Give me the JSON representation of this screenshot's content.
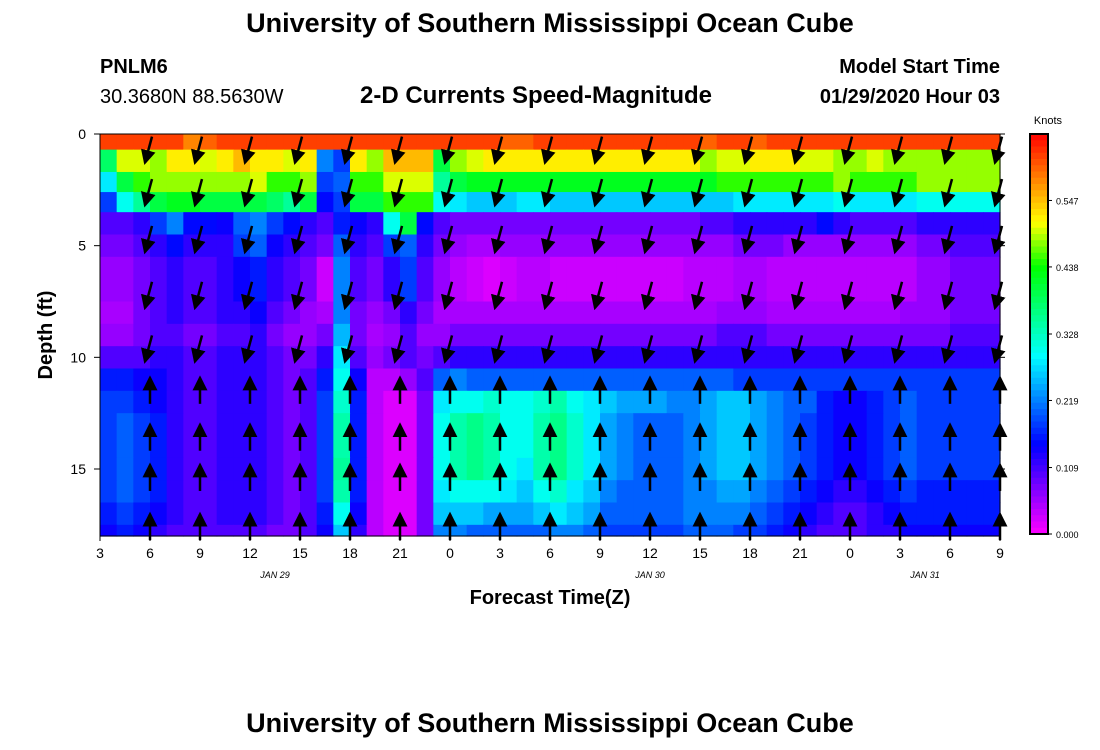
{
  "header": {
    "title": "University of Southern Mississippi Ocean Cube",
    "station_id": "PNLM6",
    "coordinates": "30.3680N 88.5630W",
    "subtitle": "2-D Currents Speed-Magnitude",
    "model_start_label": "Model Start Time",
    "model_start_value": "01/29/2020 Hour 03"
  },
  "footer": {
    "title": "University of Southern Mississippi Ocean Cube"
  },
  "chart_data": {
    "type": "heatmap",
    "title": "2-D Currents Speed-Magnitude",
    "xlabel": "Forecast Time(Z)",
    "ylabel": "Depth (ft)",
    "x_ticks": [
      "3",
      "6",
      "9",
      "12",
      "15",
      "18",
      "21",
      "0",
      "3",
      "6",
      "9",
      "12",
      "15",
      "18",
      "21",
      "0",
      "3",
      "6",
      "9"
    ],
    "x_hours": [
      0,
      54
    ],
    "date_labels": [
      {
        "text": "JAN 29",
        "hour": 10.5
      },
      {
        "text": "JAN 30",
        "hour": 33
      },
      {
        "text": "JAN 31",
        "hour": 49.5
      }
    ],
    "y_ticks": [
      0,
      5,
      10,
      15
    ],
    "ylim": [
      0,
      18
    ],
    "colorbar": {
      "unit": "Knots",
      "ticks": [
        0.0,
        0.109,
        0.219,
        0.328,
        0.438,
        0.547
      ],
      "tick_labels": [
        "0.000",
        "0.109",
        "0.219",
        "0.328",
        "0.438",
        "0.547"
      ],
      "range": [
        0,
        0.656
      ]
    },
    "color_scale": [
      "#ff00ff",
      "#8000ff",
      "#0000ff",
      "#0080ff",
      "#00ffff",
      "#00ff80",
      "#00ff00",
      "#ffff00",
      "#ff8000",
      "#ff0000"
    ],
    "arrow_columns_hours": [
      3,
      6,
      9,
      12,
      15,
      18,
      21,
      24,
      27,
      30,
      33,
      36,
      39,
      42,
      45,
      48,
      51,
      54
    ],
    "arrow_depths_ft": [
      0.7,
      2.6,
      4.7,
      7.2,
      9.6,
      11.5,
      13.6,
      15.4,
      17.6
    ],
    "surface_direction": "south",
    "subsurface_direction": "north",
    "depth_layers_ft": [
      0,
      0.7,
      1.7,
      2.6,
      3.5,
      4.5,
      5.5,
      7.5,
      8.5,
      9.5,
      10.5,
      11.5,
      12.5,
      14.5,
      15.5,
      16.5,
      17.5,
      18
    ],
    "speed_grid": [
      [
        0.62,
        0.62,
        0.62,
        0.62,
        0.62,
        0.58,
        0.6,
        0.62,
        0.62,
        0.62,
        0.62,
        0.62,
        0.62,
        0.62,
        0.62,
        0.62,
        0.62,
        0.62,
        0.62,
        0.62,
        0.62,
        0.62,
        0.62,
        0.62,
        0.6,
        0.6,
        0.62,
        0.62,
        0.62,
        0.62,
        0.62,
        0.62,
        0.62,
        0.62,
        0.62,
        0.62,
        0.6,
        0.62,
        0.62,
        0.6,
        0.62,
        0.62,
        0.62,
        0.62,
        0.62,
        0.62,
        0.62,
        0.62,
        0.62,
        0.62,
        0.62,
        0.62,
        0.62,
        0.62
      ],
      [
        0.38,
        0.5,
        0.5,
        0.48,
        0.52,
        0.52,
        0.5,
        0.52,
        0.55,
        0.52,
        0.52,
        0.5,
        0.52,
        0.22,
        0.18,
        0.52,
        0.48,
        0.55,
        0.55,
        0.55,
        0.4,
        0.48,
        0.5,
        0.52,
        0.52,
        0.52,
        0.52,
        0.52,
        0.52,
        0.52,
        0.52,
        0.52,
        0.52,
        0.52,
        0.52,
        0.52,
        0.48,
        0.5,
        0.5,
        0.52,
        0.52,
        0.52,
        0.5,
        0.5,
        0.48,
        0.48,
        0.5,
        0.48,
        0.48,
        0.48,
        0.48,
        0.48,
        0.48,
        0.48
      ],
      [
        0.28,
        0.4,
        0.45,
        0.48,
        0.48,
        0.48,
        0.48,
        0.48,
        0.48,
        0.5,
        0.45,
        0.45,
        0.48,
        0.18,
        0.2,
        0.45,
        0.45,
        0.5,
        0.5,
        0.5,
        0.35,
        0.4,
        0.42,
        0.42,
        0.42,
        0.42,
        0.42,
        0.42,
        0.42,
        0.42,
        0.42,
        0.42,
        0.42,
        0.42,
        0.42,
        0.42,
        0.42,
        0.45,
        0.45,
        0.45,
        0.45,
        0.45,
        0.45,
        0.45,
        0.48,
        0.45,
        0.45,
        0.45,
        0.45,
        0.48,
        0.48,
        0.48,
        0.48,
        0.48
      ],
      [
        0.18,
        0.3,
        0.35,
        0.4,
        0.42,
        0.42,
        0.4,
        0.4,
        0.4,
        0.4,
        0.38,
        0.35,
        0.4,
        0.15,
        0.18,
        0.4,
        0.4,
        0.45,
        0.45,
        0.45,
        0.3,
        0.28,
        0.26,
        0.26,
        0.26,
        0.28,
        0.28,
        0.26,
        0.26,
        0.26,
        0.26,
        0.26,
        0.26,
        0.26,
        0.26,
        0.26,
        0.26,
        0.26,
        0.28,
        0.28,
        0.28,
        0.28,
        0.28,
        0.28,
        0.3,
        0.28,
        0.28,
        0.28,
        0.28,
        0.3,
        0.3,
        0.3,
        0.3,
        0.3
      ],
      [
        0.1,
        0.1,
        0.12,
        0.18,
        0.22,
        0.15,
        0.15,
        0.14,
        0.2,
        0.22,
        0.18,
        0.15,
        0.12,
        0.1,
        0.16,
        0.14,
        0.12,
        0.3,
        0.4,
        0.15,
        0.1,
        0.08,
        0.08,
        0.08,
        0.08,
        0.08,
        0.08,
        0.08,
        0.08,
        0.08,
        0.08,
        0.08,
        0.08,
        0.08,
        0.08,
        0.08,
        0.1,
        0.1,
        0.12,
        0.12,
        0.12,
        0.12,
        0.12,
        0.15,
        0.12,
        0.1,
        0.1,
        0.1,
        0.1,
        0.12,
        0.12,
        0.12,
        0.12,
        0.12
      ],
      [
        0.08,
        0.08,
        0.1,
        0.12,
        0.15,
        0.12,
        0.12,
        0.12,
        0.18,
        0.2,
        0.14,
        0.12,
        0.1,
        0.08,
        0.2,
        0.12,
        0.1,
        0.18,
        0.2,
        0.12,
        0.08,
        0.06,
        0.05,
        0.05,
        0.06,
        0.06,
        0.06,
        0.06,
        0.06,
        0.06,
        0.06,
        0.06,
        0.06,
        0.06,
        0.06,
        0.06,
        0.06,
        0.06,
        0.08,
        0.08,
        0.08,
        0.06,
        0.06,
        0.06,
        0.06,
        0.06,
        0.06,
        0.06,
        0.06,
        0.08,
        0.08,
        0.1,
        0.1,
        0.1
      ],
      [
        0.06,
        0.06,
        0.08,
        0.1,
        0.12,
        0.1,
        0.1,
        0.12,
        0.14,
        0.16,
        0.12,
        0.1,
        0.08,
        0.03,
        0.22,
        0.1,
        0.08,
        0.12,
        0.18,
        0.1,
        0.06,
        0.04,
        0.03,
        0.02,
        0.03,
        0.04,
        0.04,
        0.03,
        0.03,
        0.03,
        0.03,
        0.03,
        0.03,
        0.03,
        0.03,
        0.04,
        0.04,
        0.04,
        0.05,
        0.05,
        0.04,
        0.04,
        0.04,
        0.04,
        0.04,
        0.04,
        0.04,
        0.04,
        0.04,
        0.06,
        0.06,
        0.08,
        0.08,
        0.08
      ],
      [
        0.05,
        0.05,
        0.08,
        0.1,
        0.12,
        0.1,
        0.1,
        0.12,
        0.12,
        0.14,
        0.1,
        0.08,
        0.06,
        0.05,
        0.22,
        0.08,
        0.06,
        0.08,
        0.12,
        0.08,
        0.05,
        0.05,
        0.05,
        0.05,
        0.05,
        0.05,
        0.05,
        0.05,
        0.05,
        0.05,
        0.05,
        0.05,
        0.05,
        0.05,
        0.05,
        0.05,
        0.05,
        0.06,
        0.06,
        0.06,
        0.05,
        0.05,
        0.05,
        0.05,
        0.05,
        0.05,
        0.05,
        0.05,
        0.06,
        0.06,
        0.06,
        0.08,
        0.08,
        0.08
      ],
      [
        0.06,
        0.06,
        0.08,
        0.1,
        0.1,
        0.08,
        0.08,
        0.1,
        0.1,
        0.12,
        0.08,
        0.06,
        0.06,
        0.08,
        0.25,
        0.08,
        0.05,
        0.06,
        0.1,
        0.06,
        0.06,
        0.08,
        0.08,
        0.08,
        0.08,
        0.08,
        0.08,
        0.08,
        0.08,
        0.08,
        0.08,
        0.08,
        0.08,
        0.08,
        0.08,
        0.08,
        0.08,
        0.1,
        0.1,
        0.1,
        0.08,
        0.08,
        0.08,
        0.08,
        0.08,
        0.08,
        0.08,
        0.08,
        0.08,
        0.08,
        0.08,
        0.1,
        0.1,
        0.1
      ],
      [
        0.1,
        0.1,
        0.1,
        0.12,
        0.12,
        0.1,
        0.1,
        0.12,
        0.12,
        0.12,
        0.1,
        0.08,
        0.08,
        0.12,
        0.28,
        0.1,
        0.06,
        0.08,
        0.1,
        0.08,
        0.1,
        0.12,
        0.12,
        0.12,
        0.12,
        0.12,
        0.12,
        0.12,
        0.12,
        0.12,
        0.12,
        0.12,
        0.12,
        0.12,
        0.12,
        0.12,
        0.12,
        0.12,
        0.12,
        0.12,
        0.12,
        0.12,
        0.12,
        0.12,
        0.12,
        0.12,
        0.12,
        0.12,
        0.12,
        0.12,
        0.12,
        0.12,
        0.12,
        0.12
      ],
      [
        0.16,
        0.16,
        0.14,
        0.14,
        0.12,
        0.1,
        0.1,
        0.12,
        0.12,
        0.12,
        0.1,
        0.08,
        0.1,
        0.16,
        0.3,
        0.14,
        0.04,
        0.04,
        0.06,
        0.1,
        0.2,
        0.22,
        0.2,
        0.2,
        0.2,
        0.2,
        0.2,
        0.2,
        0.2,
        0.2,
        0.2,
        0.2,
        0.2,
        0.2,
        0.2,
        0.2,
        0.2,
        0.2,
        0.18,
        0.18,
        0.18,
        0.18,
        0.18,
        0.18,
        0.18,
        0.18,
        0.18,
        0.18,
        0.18,
        0.18,
        0.18,
        0.18,
        0.18,
        0.18
      ],
      [
        0.18,
        0.18,
        0.16,
        0.14,
        0.12,
        0.1,
        0.1,
        0.12,
        0.12,
        0.12,
        0.1,
        0.08,
        0.1,
        0.18,
        0.32,
        0.16,
        0.04,
        0.02,
        0.02,
        0.08,
        0.28,
        0.3,
        0.3,
        0.32,
        0.3,
        0.3,
        0.32,
        0.34,
        0.3,
        0.28,
        0.26,
        0.24,
        0.24,
        0.24,
        0.22,
        0.22,
        0.24,
        0.26,
        0.26,
        0.24,
        0.22,
        0.2,
        0.2,
        0.16,
        0.14,
        0.14,
        0.16,
        0.18,
        0.2,
        0.18,
        0.18,
        0.18,
        0.18,
        0.18
      ],
      [
        0.18,
        0.2,
        0.18,
        0.16,
        0.12,
        0.1,
        0.1,
        0.12,
        0.12,
        0.12,
        0.1,
        0.08,
        0.1,
        0.18,
        0.34,
        0.16,
        0.04,
        0.02,
        0.02,
        0.08,
        0.3,
        0.34,
        0.36,
        0.34,
        0.3,
        0.3,
        0.34,
        0.36,
        0.32,
        0.28,
        0.24,
        0.22,
        0.2,
        0.2,
        0.2,
        0.22,
        0.24,
        0.26,
        0.26,
        0.24,
        0.22,
        0.2,
        0.18,
        0.16,
        0.14,
        0.14,
        0.16,
        0.18,
        0.2,
        0.18,
        0.18,
        0.18,
        0.18,
        0.18
      ],
      [
        0.18,
        0.2,
        0.18,
        0.16,
        0.12,
        0.1,
        0.1,
        0.12,
        0.12,
        0.12,
        0.1,
        0.08,
        0.1,
        0.18,
        0.35,
        0.16,
        0.04,
        0.02,
        0.02,
        0.08,
        0.3,
        0.34,
        0.36,
        0.34,
        0.3,
        0.28,
        0.34,
        0.36,
        0.32,
        0.28,
        0.24,
        0.22,
        0.2,
        0.2,
        0.2,
        0.22,
        0.24,
        0.26,
        0.26,
        0.24,
        0.22,
        0.2,
        0.18,
        0.16,
        0.14,
        0.14,
        0.16,
        0.18,
        0.2,
        0.18,
        0.18,
        0.18,
        0.18,
        0.18
      ],
      [
        0.18,
        0.2,
        0.18,
        0.16,
        0.12,
        0.1,
        0.1,
        0.12,
        0.12,
        0.12,
        0.1,
        0.08,
        0.1,
        0.18,
        0.34,
        0.16,
        0.04,
        0.02,
        0.02,
        0.08,
        0.28,
        0.3,
        0.3,
        0.3,
        0.28,
        0.26,
        0.3,
        0.32,
        0.28,
        0.26,
        0.22,
        0.2,
        0.2,
        0.2,
        0.2,
        0.22,
        0.22,
        0.24,
        0.24,
        0.22,
        0.2,
        0.18,
        0.16,
        0.14,
        0.12,
        0.12,
        0.14,
        0.16,
        0.18,
        0.16,
        0.16,
        0.16,
        0.16,
        0.16
      ],
      [
        0.16,
        0.18,
        0.16,
        0.14,
        0.12,
        0.1,
        0.1,
        0.12,
        0.12,
        0.12,
        0.1,
        0.08,
        0.1,
        0.16,
        0.3,
        0.14,
        0.04,
        0.02,
        0.02,
        0.08,
        0.26,
        0.26,
        0.26,
        0.24,
        0.24,
        0.24,
        0.26,
        0.28,
        0.26,
        0.24,
        0.2,
        0.2,
        0.2,
        0.2,
        0.2,
        0.22,
        0.22,
        0.22,
        0.22,
        0.2,
        0.18,
        0.16,
        0.14,
        0.12,
        0.1,
        0.1,
        0.12,
        0.14,
        0.16,
        0.16,
        0.16,
        0.16,
        0.16,
        0.16
      ],
      [
        0.14,
        0.16,
        0.14,
        0.12,
        0.1,
        0.1,
        0.1,
        0.1,
        0.1,
        0.1,
        0.08,
        0.08,
        0.1,
        0.14,
        0.26,
        0.12,
        0.04,
        0.02,
        0.02,
        0.08,
        0.22,
        0.22,
        0.2,
        0.2,
        0.2,
        0.2,
        0.2,
        0.22,
        0.22,
        0.2,
        0.18,
        0.18,
        0.18,
        0.18,
        0.18,
        0.2,
        0.2,
        0.2,
        0.18,
        0.18,
        0.16,
        0.14,
        0.12,
        0.1,
        0.1,
        0.1,
        0.12,
        0.12,
        0.14,
        0.14,
        0.14,
        0.14,
        0.14,
        0.14
      ],
      [
        0.16,
        0.18,
        0.16,
        0.14,
        0.12,
        0.1,
        0.1,
        0.12,
        0.12,
        0.12,
        0.1,
        0.08,
        0.1,
        0.16,
        0.28,
        0.12,
        0.04,
        0.02,
        0.02,
        0.08,
        0.24,
        0.24,
        0.24,
        0.22,
        0.22,
        0.22,
        0.24,
        0.26,
        0.24,
        0.22,
        0.18,
        0.18,
        0.18,
        0.18,
        0.18,
        0.2,
        0.2,
        0.2,
        0.2,
        0.18,
        0.16,
        0.14,
        0.12,
        0.1,
        0.1,
        0.1,
        0.12,
        0.14,
        0.16,
        0.16,
        0.16,
        0.16,
        0.16,
        0.16
      ]
    ]
  }
}
